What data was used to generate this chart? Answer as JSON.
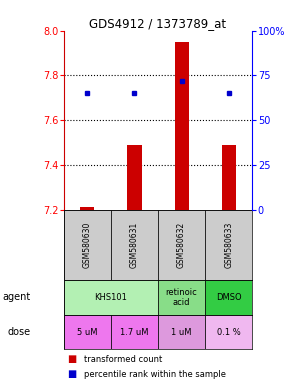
{
  "title": "GDS4912 / 1373789_at",
  "samples": [
    "GSM580630",
    "GSM580631",
    "GSM580632",
    "GSM580633"
  ],
  "bar_values": [
    7.21,
    7.49,
    7.95,
    7.49
  ],
  "bar_base": 7.2,
  "dot_values_pct": [
    65,
    65,
    72,
    65
  ],
  "ylim": [
    7.2,
    8.0
  ],
  "y_left_ticks": [
    7.2,
    7.4,
    7.6,
    7.8,
    8.0
  ],
  "y_right_ticks": [
    0,
    25,
    50,
    75,
    100
  ],
  "y_right_labels": [
    "0",
    "25",
    "50",
    "75",
    "100%"
  ],
  "dotted_lines": [
    7.4,
    7.6,
    7.8
  ],
  "agent_configs": [
    [
      0,
      2,
      "KHS101",
      "#b3f0b3"
    ],
    [
      2,
      3,
      "retinoic\nacid",
      "#88dd88"
    ],
    [
      3,
      4,
      "DMSO",
      "#33cc44"
    ]
  ],
  "dose_labels": [
    "5 uM",
    "1.7 uM",
    "1 uM",
    "0.1 %"
  ],
  "dose_colors": [
    "#ee77ee",
    "#ee77ee",
    "#dd99dd",
    "#f0b8f0"
  ],
  "sample_bg": "#cccccc",
  "legend_red": "transformed count",
  "legend_blue": "percentile rank within the sample",
  "bar_color": "#cc0000",
  "dot_color": "#0000cc"
}
